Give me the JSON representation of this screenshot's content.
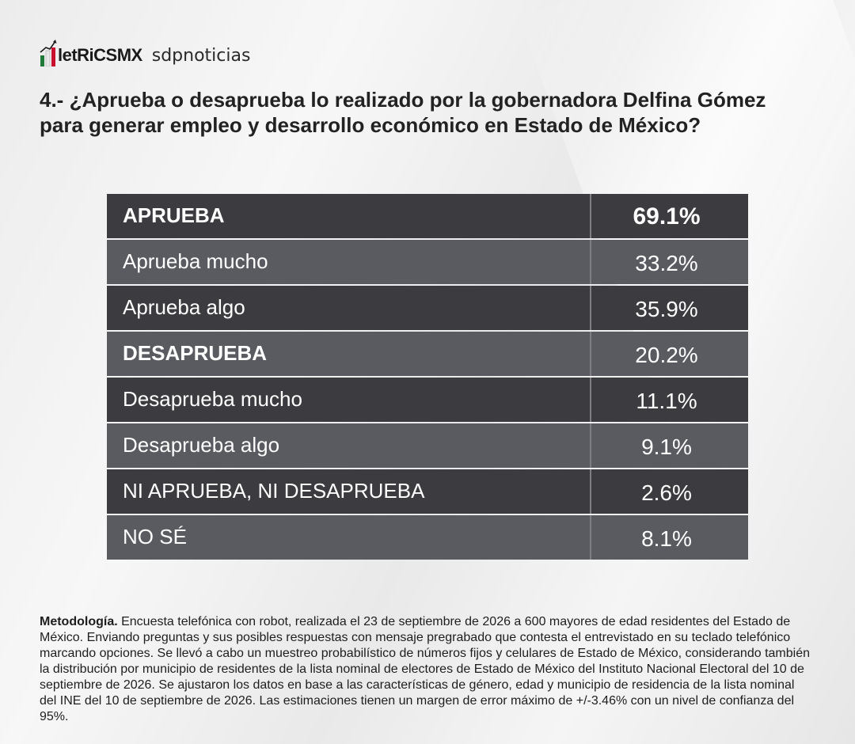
{
  "header": {
    "logo_metrics": "letRiCSMX",
    "logo_sdp": "sdpnoticias"
  },
  "question": "4.- ¿Aprueba o desaprueba lo realizado por la gobernadora Delfina Gómez para generar empleo y desarrollo económico en Estado de México?",
  "chart_data": {
    "type": "table",
    "rows": [
      {
        "label": "APRUEBA",
        "value": "69.1%",
        "numeric": 69.1
      },
      {
        "label": "Aprueba mucho",
        "value": "33.2%",
        "numeric": 33.2
      },
      {
        "label": "Aprueba algo",
        "value": "35.9%",
        "numeric": 35.9
      },
      {
        "label": "DESAPRUEBA",
        "value": "20.2%",
        "numeric": 20.2
      },
      {
        "label": "Desaprueba mucho",
        "value": "11.1%",
        "numeric": 11.1
      },
      {
        "label": "Desaprueba algo",
        "value": "9.1%",
        "numeric": 9.1
      },
      {
        "label": "NI APRUEBA, NI DESAPRUEBA",
        "value": "2.6%",
        "numeric": 2.6
      },
      {
        "label": "NO SÉ",
        "value": "8.1%",
        "numeric": 8.1
      }
    ]
  },
  "colors": {
    "row_dark": "#3b3b40",
    "row_light": "#5a5b61",
    "logo_green": "#1f7a3a",
    "logo_red": "#c8102e"
  },
  "methodology": {
    "label": "Metodología.",
    "text": " Encuesta telefónica con robot, realizada el 23 de septiembre de 2026 a 600 mayores de edad residentes del Estado de México. Enviando preguntas y sus posibles respuestas con mensaje pregrabado que contesta el entrevistado en su teclado telefónico marcando opciones. Se llevó a cabo un muestreo probabilístico de números fijos y celulares de Estado de México, considerando también la distribución por municipio de residentes de la lista nominal de electores de Estado de México del Instituto Nacional Electoral del 10 de septiembre de 2026. Se ajustaron los datos en base a las características de género, edad y municipio de residencia de la lista nominal del INE del 10 de septiembre de 2026. Las estimaciones tienen un margen de error máximo de +/-3.46% con un nivel de confianza del 95%."
  }
}
